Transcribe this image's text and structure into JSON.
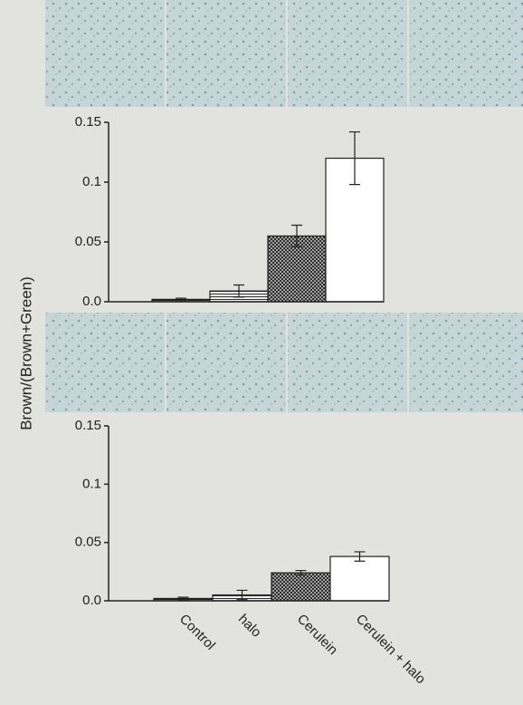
{
  "y_label": "Brown/(Brown+Green)",
  "chart_data": [
    {
      "type": "bar",
      "categories": [
        null,
        null,
        null,
        null
      ],
      "values": [
        0.002,
        0.009,
        0.055,
        0.12
      ],
      "errors": [
        0.001,
        0.005,
        0.009,
        0.022
      ],
      "ylim": [
        0,
        0.15
      ],
      "yticks": [
        {
          "value": 0,
          "label": "0.0"
        },
        0.05,
        0.1,
        0.15
      ]
    },
    {
      "type": "bar",
      "categories": [
        "Control",
        "halo",
        "Cerulein",
        "Cerulein + halo"
      ],
      "values": [
        0.002,
        0.005,
        0.024,
        0.038
      ],
      "errors": [
        0.001,
        0.004,
        0.002,
        0.004
      ],
      "ylim": [
        0,
        0.15
      ],
      "yticks": [
        {
          "value": 0,
          "label": "0.0"
        },
        0.05,
        0.1,
        0.15
      ]
    }
  ]
}
